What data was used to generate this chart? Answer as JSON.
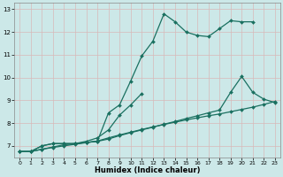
{
  "xlabel": "Humidex (Indice chaleur)",
  "background_color": "#cce8e8",
  "grid_color": "#b0d0d0",
  "line_color": "#1a7060",
  "xlim": [
    -0.5,
    23.5
  ],
  "ylim": [
    6.5,
    13.3
  ],
  "yticks": [
    7,
    8,
    9,
    10,
    11,
    12,
    13
  ],
  "xticks": [
    0,
    1,
    2,
    3,
    4,
    5,
    6,
    7,
    8,
    9,
    10,
    11,
    12,
    13,
    14,
    15,
    16,
    17,
    18,
    19,
    20,
    21,
    22,
    23
  ],
  "series": [
    {
      "x": [
        0,
        1,
        2,
        3,
        4,
        5,
        6,
        7,
        8,
        9,
        10,
        11,
        12,
        13,
        14,
        15,
        16,
        17,
        18,
        19,
        20,
        21
      ],
      "y": [
        6.75,
        6.75,
        7.0,
        7.1,
        7.1,
        7.1,
        7.15,
        7.2,
        8.45,
        8.8,
        9.85,
        10.95,
        11.6,
        12.8,
        12.45,
        12.0,
        11.85,
        11.8,
        12.15,
        12.5,
        12.45,
        12.45
      ]
    },
    {
      "x": [
        0,
        1,
        2,
        3,
        4,
        5,
        6,
        7,
        8,
        9,
        10,
        11
      ],
      "y": [
        6.75,
        6.75,
        7.0,
        7.1,
        7.1,
        7.1,
        7.2,
        7.35,
        7.7,
        8.35,
        8.8,
        9.3
      ]
    },
    {
      "x": [
        0,
        1,
        2,
        3,
        4,
        5,
        6,
        7,
        8,
        9,
        10,
        11,
        12,
        13,
        14,
        15,
        16,
        17,
        18,
        19,
        20,
        21,
        22,
        23
      ],
      "y": [
        6.75,
        6.75,
        6.85,
        6.95,
        7.05,
        7.1,
        7.15,
        7.2,
        7.3,
        7.45,
        7.58,
        7.7,
        7.82,
        7.95,
        8.07,
        8.2,
        8.32,
        8.45,
        8.57,
        9.35,
        10.05,
        9.35,
        9.05,
        8.9
      ]
    },
    {
      "x": [
        0,
        1,
        2,
        3,
        4,
        5,
        6,
        7,
        8,
        9,
        10,
        11,
        12,
        13,
        14,
        15,
        16,
        17,
        18,
        19,
        20,
        21,
        22,
        23
      ],
      "y": [
        6.75,
        6.75,
        6.85,
        6.93,
        7.0,
        7.07,
        7.14,
        7.21,
        7.35,
        7.48,
        7.6,
        7.72,
        7.83,
        7.94,
        8.04,
        8.14,
        8.23,
        8.32,
        8.4,
        8.5,
        8.6,
        8.7,
        8.82,
        8.95
      ]
    }
  ]
}
